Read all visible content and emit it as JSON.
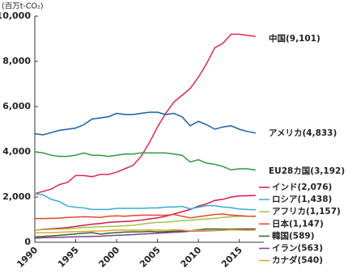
{
  "chart_data": {
    "type": "line",
    "y_label": "(百万t-CO₂)",
    "x": [
      1990,
      1991,
      1992,
      1993,
      1994,
      1995,
      1996,
      1997,
      1998,
      1999,
      2000,
      2001,
      2002,
      2003,
      2004,
      2005,
      2006,
      2007,
      2008,
      2009,
      2010,
      2011,
      2012,
      2013,
      2014,
      2015,
      2016,
      2017
    ],
    "xlim": [
      1990,
      2018
    ],
    "xticks": [
      1990,
      1995,
      2000,
      2005,
      2010,
      2015
    ],
    "ylim": [
      0,
      10000
    ],
    "yticks": [
      0,
      {
        "value": 2000,
        "label": "2,000"
      },
      {
        "value": 4000,
        "label": "4,000"
      },
      {
        "value": 6000,
        "label": "6,000"
      },
      {
        "value": 8000,
        "label": "8,000"
      },
      {
        "value": 10000,
        "label": "10,000"
      }
    ],
    "grid": false,
    "series": [
      {
        "name": "中国(9,101)",
        "color": "#e0294f",
        "values": [
          2150,
          2250,
          2350,
          2550,
          2650,
          2950,
          2950,
          2900,
          3000,
          3000,
          3100,
          3250,
          3400,
          3800,
          4400,
          5100,
          5700,
          6200,
          6500,
          6800,
          7300,
          7900,
          8600,
          8800,
          9200,
          9200,
          9150,
          9101
        ]
      },
      {
        "name": "アメリカ(4,833)",
        "color": "#1c5ea8",
        "values": [
          4800,
          4750,
          4850,
          4950,
          5000,
          5050,
          5200,
          5450,
          5500,
          5550,
          5700,
          5650,
          5650,
          5700,
          5750,
          5750,
          5650,
          5700,
          5550,
          5150,
          5350,
          5200,
          5000,
          5100,
          5150,
          5000,
          4900,
          4833
        ]
      },
      {
        "name": "EU28カ国(3,192)",
        "color": "#2f9a3a",
        "values": [
          4000,
          3950,
          3850,
          3800,
          3800,
          3850,
          3950,
          3850,
          3850,
          3800,
          3850,
          3900,
          3900,
          3950,
          3950,
          3950,
          3950,
          3900,
          3850,
          3550,
          3650,
          3500,
          3450,
          3350,
          3200,
          3250,
          3250,
          3192
        ]
      },
      {
        "name": "インド(2,076)",
        "color": "#d6164a",
        "values": [
          530,
          570,
          600,
          620,
          650,
          700,
          750,
          800,
          830,
          880,
          900,
          920,
          940,
          980,
          1030,
          1080,
          1150,
          1250,
          1350,
          1450,
          1600,
          1700,
          1850,
          1900,
          2000,
          2050,
          2060,
          2076
        ]
      },
      {
        "name": "ロシア(1,438)",
        "color": "#3aa9d8",
        "values": [
          2150,
          2100,
          1900,
          1800,
          1600,
          1550,
          1520,
          1450,
          1450,
          1450,
          1500,
          1500,
          1500,
          1500,
          1520,
          1520,
          1560,
          1560,
          1590,
          1480,
          1550,
          1620,
          1620,
          1560,
          1530,
          1470,
          1450,
          1438
        ]
      },
      {
        "name": "アフリカ(1,157)",
        "color": "#9cc54a",
        "values": [
          540,
          560,
          570,
          580,
          600,
          620,
          650,
          670,
          690,
          700,
          710,
          730,
          750,
          800,
          850,
          880,
          890,
          920,
          960,
          970,
          1010,
          1030,
          1060,
          1100,
          1130,
          1150,
          1150,
          1157
        ]
      },
      {
        "name": "日本(1,147)",
        "color": "#e8432e",
        "values": [
          1050,
          1050,
          1060,
          1070,
          1100,
          1110,
          1130,
          1120,
          1100,
          1150,
          1170,
          1150,
          1180,
          1200,
          1200,
          1200,
          1190,
          1230,
          1150,
          1080,
          1130,
          1180,
          1230,
          1250,
          1200,
          1180,
          1150,
          1147
        ]
      },
      {
        "name": "韓国(589)",
        "color": "#2a6a2c",
        "values": [
          240,
          260,
          280,
          310,
          340,
          370,
          400,
          430,
          360,
          400,
          430,
          450,
          460,
          460,
          480,
          460,
          470,
          490,
          500,
          510,
          550,
          590,
          590,
          580,
          580,
          590,
          590,
          589
        ]
      },
      {
        "name": "イラン(563)",
        "color": "#7b3f98",
        "values": [
          180,
          200,
          210,
          220,
          230,
          240,
          250,
          260,
          270,
          290,
          310,
          320,
          340,
          360,
          380,
          400,
          420,
          440,
          460,
          490,
          500,
          510,
          520,
          530,
          550,
          560,
          560,
          563
        ]
      },
      {
        "name": "カナダ(540)",
        "color": "#f0a02c",
        "values": [
          420,
          420,
          430,
          440,
          460,
          470,
          480,
          490,
          500,
          520,
          540,
          540,
          530,
          540,
          550,
          540,
          530,
          560,
          540,
          510,
          520,
          530,
          530,
          540,
          550,
          540,
          530,
          540
        ]
      }
    ]
  }
}
